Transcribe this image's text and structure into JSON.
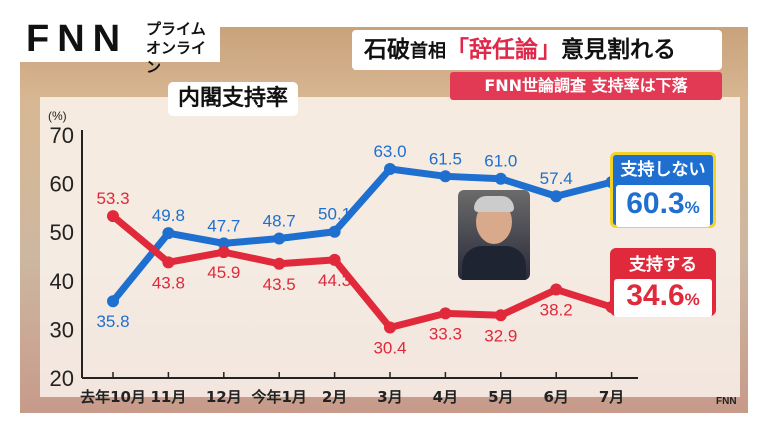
{
  "brand": {
    "logo": "FNN",
    "logo_sub_line1": "プライム",
    "logo_sub_line2": "オンライン",
    "watermark": "FNN"
  },
  "headline": {
    "part1": "石破",
    "part2": "首相",
    "part3": "「辞任論」",
    "part4": "意見割れる"
  },
  "subheadline": "FNN世論調査 支持率は下落",
  "colors": {
    "disapprove": "#1e6fd0",
    "approve": "#e0293a",
    "accent_border": "#f3d32a"
  },
  "chart_data": {
    "type": "line",
    "title": "内閣支持率",
    "ylabel": "(%)",
    "ylim": [
      20,
      70
    ],
    "yticks": [
      20,
      30,
      40,
      50,
      60,
      70
    ],
    "categories": [
      "去年10月",
      "11月",
      "12月",
      "今年1月",
      "2月",
      "3月",
      "4月",
      "5月",
      "6月",
      "7月"
    ],
    "series": [
      {
        "name": "支持しない",
        "color": "#1e6fd0",
        "values": [
          35.8,
          49.8,
          47.7,
          48.7,
          50.1,
          63.0,
          61.5,
          61.0,
          57.4,
          60.3
        ],
        "latest_label": "60.3",
        "unit": "%"
      },
      {
        "name": "支持する",
        "color": "#e0293a",
        "values": [
          53.3,
          43.8,
          45.9,
          43.5,
          44.3,
          30.4,
          33.3,
          32.9,
          38.2,
          34.6
        ],
        "latest_label": "34.6",
        "unit": "%"
      }
    ],
    "grid": false,
    "legend_placement": "right"
  }
}
